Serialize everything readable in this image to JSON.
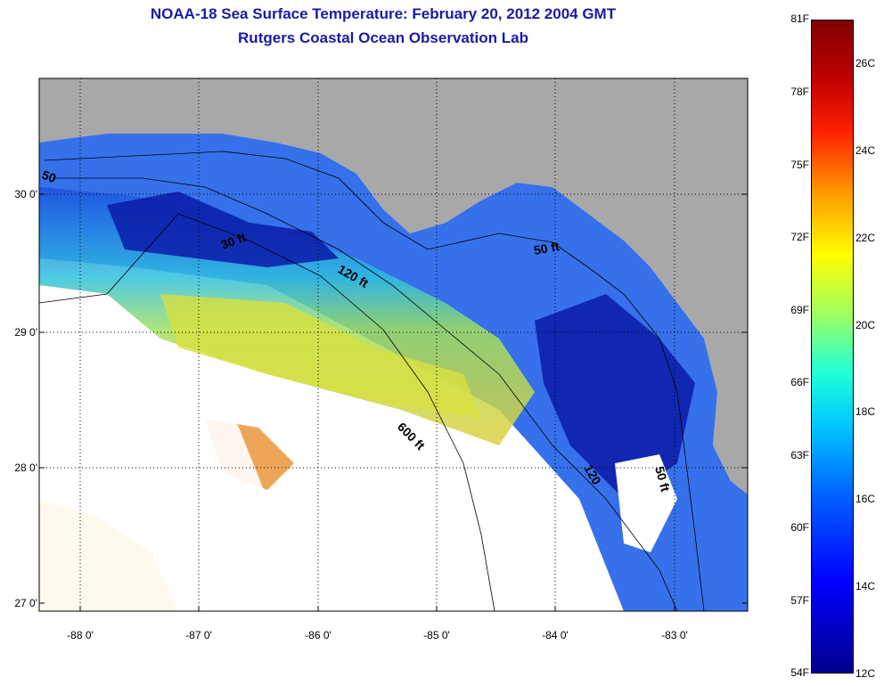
{
  "title_line1": "NOAA-18 Sea Surface Temperature:  February 20, 2012 2004 GMT",
  "title_line2": "Rutgers Coastal Ocean Observation Lab",
  "lat_labels": [
    "30 0'",
    "29 0'",
    "28 0'",
    "27 0'"
  ],
  "lon_labels": [
    "-88 0'",
    "-87 0'",
    "-86 0'",
    "-85 0'",
    "-84 0'",
    "-83 0'"
  ],
  "contour_labels": [
    "50",
    "30 ft",
    "120 ft",
    "50 ft",
    "600 ft",
    "120",
    "50 ft"
  ],
  "colorbar": {
    "f_labels": [
      "81F",
      "78F",
      "75F",
      "72F",
      "69F",
      "66F",
      "63F",
      "60F",
      "57F",
      "54F"
    ],
    "c_labels": [
      "26C",
      "24C",
      "22C",
      "20C",
      "18C",
      "16C",
      "14C",
      "12C"
    ]
  },
  "colors": {
    "land": "#a8a8a8",
    "title": "#1a1aa6",
    "cloud": "#ffffff"
  }
}
